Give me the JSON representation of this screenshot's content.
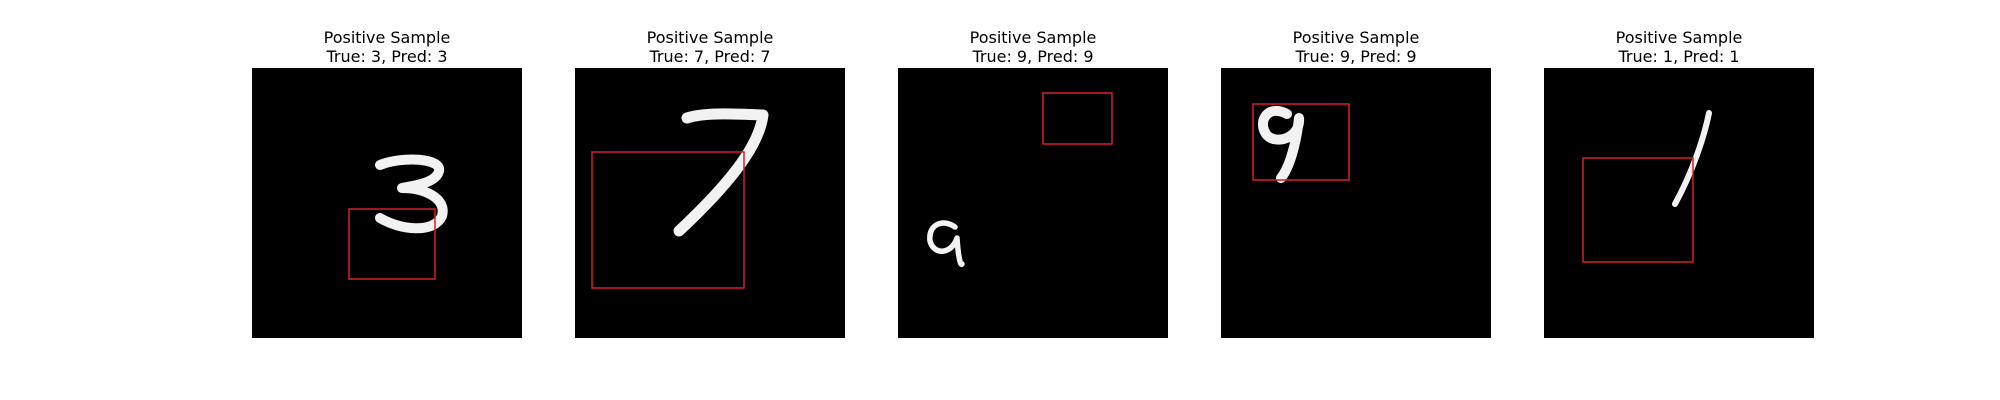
{
  "colors": {
    "background": "#ffffff",
    "image_background": "#000000",
    "digit_stroke": "#f2f2f2",
    "box_stroke": "#d62020"
  },
  "samples": [
    {
      "title": "Positive Sample",
      "subtitle": "True: 3, Pred: 3",
      "digit_glyph": "3"
    },
    {
      "title": "Positive Sample",
      "subtitle": "True: 7, Pred: 7",
      "digit_glyph": "7"
    },
    {
      "title": "Positive Sample",
      "subtitle": "True: 9, Pred: 9",
      "digit_glyph": "9"
    },
    {
      "title": "Positive Sample",
      "subtitle": "True: 9, Pred: 9",
      "digit_glyph": "9"
    },
    {
      "title": "Positive Sample",
      "subtitle": "True: 1, Pred: 1",
      "digit_glyph": "1"
    }
  ]
}
